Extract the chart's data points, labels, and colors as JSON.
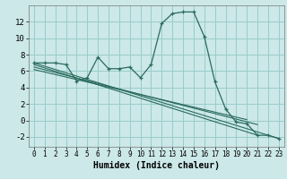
{
  "xlabel": "Humidex (Indice chaleur)",
  "bg_color": "#cce8e8",
  "grid_color": "#99cccc",
  "line_color": "#2a6b5e",
  "xlim": [
    -0.5,
    23.5
  ],
  "ylim": [
    -3.2,
    14.0
  ],
  "xticks": [
    0,
    1,
    2,
    3,
    4,
    5,
    6,
    7,
    8,
    9,
    10,
    11,
    12,
    13,
    14,
    15,
    16,
    17,
    18,
    19,
    20,
    21,
    22,
    23
  ],
  "yticks": [
    -2,
    0,
    2,
    4,
    6,
    8,
    10,
    12
  ],
  "main_x": [
    0,
    1,
    2,
    3,
    4,
    5,
    6,
    7,
    8,
    9,
    10,
    11,
    12,
    13,
    14,
    15,
    16,
    17,
    18,
    19,
    20,
    21,
    22,
    23
  ],
  "main_y": [
    7.0,
    7.0,
    7.0,
    6.8,
    4.8,
    5.2,
    7.7,
    6.3,
    6.3,
    6.5,
    5.2,
    6.8,
    11.8,
    13.0,
    13.2,
    13.2,
    10.2,
    4.7,
    1.4,
    -0.2,
    -0.4,
    -1.8,
    -1.8,
    -2.2
  ],
  "trends": [
    {
      "x": [
        0,
        23
      ],
      "y": [
        7.0,
        -2.2
      ]
    },
    {
      "x": [
        0,
        21
      ],
      "y": [
        6.8,
        -1.8
      ]
    },
    {
      "x": [
        0,
        21
      ],
      "y": [
        6.5,
        -0.5
      ]
    },
    {
      "x": [
        0,
        20
      ],
      "y": [
        6.2,
        0.1
      ]
    }
  ]
}
